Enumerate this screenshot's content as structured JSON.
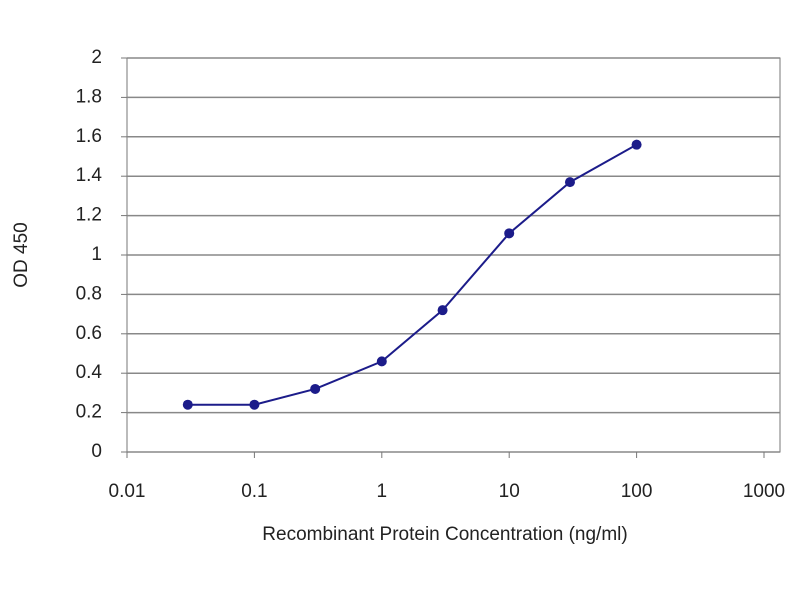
{
  "chart_data": {
    "type": "line",
    "x_label": "Recombinant Protein Concentration (ng/ml)",
    "y_label": "OD 450",
    "x": [
      0.03,
      0.1,
      0.3,
      1,
      3,
      10,
      30,
      100
    ],
    "series": [
      {
        "color": "#1c1c8a",
        "values": [
          0.24,
          0.24,
          0.32,
          0.46,
          0.72,
          1.11,
          1.37,
          1.56
        ]
      }
    ],
    "xscale": "log",
    "xlim": [
      0.01,
      1000
    ],
    "xticks": [
      0.01,
      0.1,
      1,
      10,
      100,
      1000
    ],
    "ylim": [
      0,
      2
    ],
    "yticks": [
      0,
      0.2,
      0.4,
      0.6,
      0.8,
      1,
      1.2,
      1.4,
      1.6,
      1.8,
      2
    ],
    "grid": true
  }
}
